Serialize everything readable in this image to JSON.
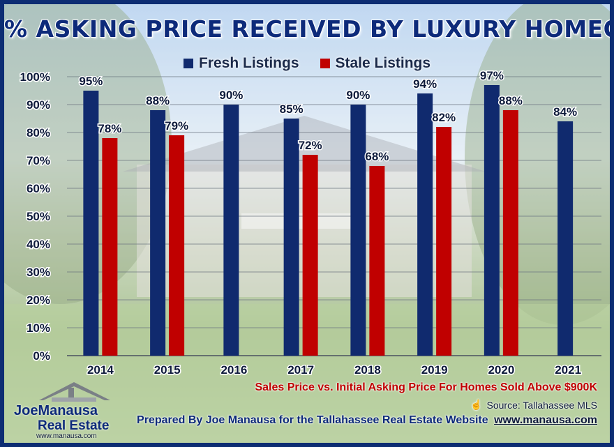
{
  "title": "% ASKING PRICE RECEIVED BY LUXURY HOMEOWNERS",
  "legend": {
    "fresh": "Fresh Listings",
    "stale": "Stale Listings"
  },
  "subtitle": "Sales Price vs. Initial Asking Price For Homes Sold Above $900K",
  "source": "Source: Tallahassee MLS",
  "prepared_by": "Prepared By Joe Manausa for the Tallahassee Real Estate Website",
  "prepared_url": "www.manausa.com",
  "logo": {
    "name": "JoeManausa",
    "sub": "Real Estate",
    "url": "www.manausa.com"
  },
  "colors": {
    "fresh": "#102a6e",
    "stale": "#c00000",
    "frame": "#0d2d73",
    "title": "#0d2a7a"
  },
  "chart_data": {
    "type": "bar",
    "categories": [
      "2014",
      "2015",
      "2016",
      "2017",
      "2018",
      "2019",
      "2020",
      "2021"
    ],
    "series": [
      {
        "name": "Fresh Listings",
        "values": [
          95,
          88,
          90,
          85,
          90,
          94,
          97,
          84
        ],
        "labels": [
          "95%",
          "88%",
          "90%",
          "85%",
          "90%",
          "94%",
          "97%",
          "84%"
        ]
      },
      {
        "name": "Stale Listings",
        "values": [
          78,
          79,
          null,
          72,
          68,
          82,
          88,
          null
        ],
        "labels": [
          "78%",
          "79%",
          "",
          "72%",
          "68%",
          "82%",
          "88%",
          ""
        ]
      }
    ],
    "ylim": [
      0,
      100
    ],
    "yticks": [
      "0%",
      "10%",
      "20%",
      "30%",
      "40%",
      "50%",
      "60%",
      "70%",
      "80%",
      "90%",
      "100%"
    ],
    "grid": true,
    "legend_position": "top"
  }
}
